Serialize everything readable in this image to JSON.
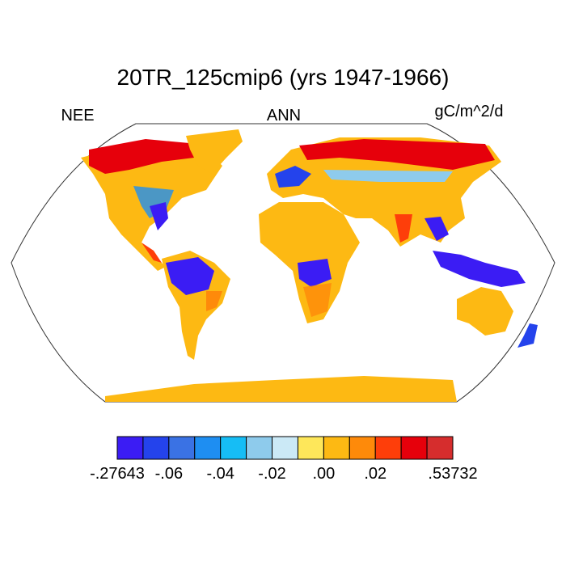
{
  "map": {
    "title": "20TR_125cmip6 (yrs 1947-1966)",
    "left_label": "NEE",
    "center_label": "ANN",
    "right_label": "gC/m^2/d",
    "colorbar": {
      "colors": [
        "#3b1cf4",
        "#2443ec",
        "#3a72e4",
        "#1e8ef2",
        "#16bdf5",
        "#8ecbec",
        "#cbe9f6",
        "#fee75a",
        "#fdb913",
        "#fe8a0a",
        "#fe3e0a",
        "#e6000b",
        "#d62d2d"
      ],
      "levels": [
        -0.27643,
        -0.07,
        -0.06,
        -0.05,
        -0.04,
        -0.03,
        -0.02,
        -0.01,
        0,
        0.01,
        0.02,
        0.03,
        0.04,
        0.53732
      ],
      "ticks": [
        {
          "value": -0.27643,
          "label": "-.27643"
        },
        {
          "value": -0.06,
          "label": "-.06"
        },
        {
          "value": -0.04,
          "label": "-.04"
        },
        {
          "value": -0.02,
          "label": "-.02"
        },
        {
          "value": 0,
          "label": ".00"
        },
        {
          "value": 0.02,
          "label": ".02"
        },
        {
          "value": 0.53732,
          "label": ".53732"
        }
      ]
    }
  }
}
